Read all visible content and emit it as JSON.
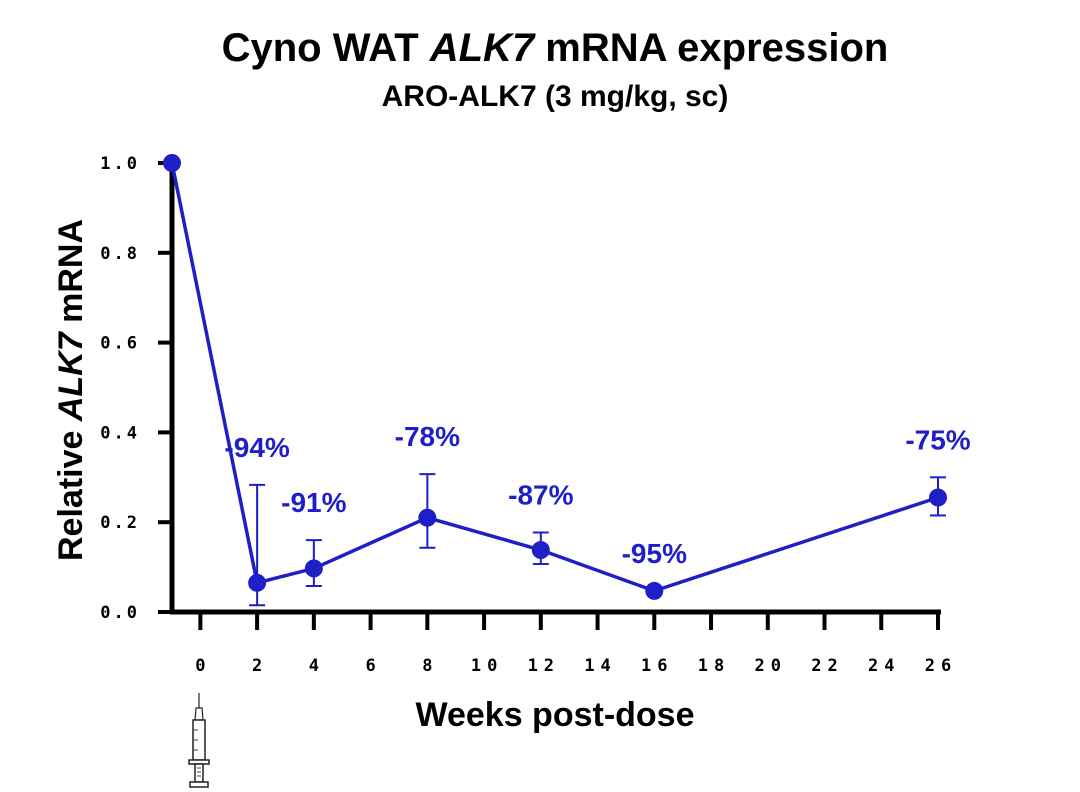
{
  "chart_data": {
    "type": "line",
    "title_pre": "Cyno WAT ",
    "title_italic": "ALK7",
    "title_post": " mRNA expression",
    "subtitle": "ARO-ALK7 (3 mg/kg, sc)",
    "xlabel": "Weeks post-dose",
    "ylabel_pre": "Relative ",
    "ylabel_italic": "ALK7",
    "ylabel_post": " mRNA",
    "ylim": [
      0,
      1.0
    ],
    "xlim": [
      -1,
      26
    ],
    "yticks": [
      "0.0",
      "0.2",
      "0.4",
      "0.6",
      "0.8",
      "1.0"
    ],
    "ytick_values": [
      0,
      0.2,
      0.4,
      0.6,
      0.8,
      1.0
    ],
    "xticks": [
      "0",
      "2",
      "4",
      "6",
      "8",
      "10",
      "12",
      "14",
      "16",
      "18",
      "20",
      "22",
      "24",
      "26"
    ],
    "xtick_values": [
      0,
      2,
      4,
      6,
      8,
      10,
      12,
      14,
      16,
      18,
      20,
      22,
      24,
      26
    ],
    "series": [
      {
        "color": "#1f1fc8",
        "points": [
          {
            "x": -1,
            "y": 1.0,
            "err_low": null,
            "err_high": null,
            "label": ""
          },
          {
            "x": 2,
            "y": 0.065,
            "err_low": 0.015,
            "err_high": 0.283,
            "label": "-94%"
          },
          {
            "x": 4,
            "y": 0.097,
            "err_low": 0.058,
            "err_high": 0.16,
            "label": "-91%"
          },
          {
            "x": 8,
            "y": 0.21,
            "err_low": 0.143,
            "err_high": 0.307,
            "label": "-78%"
          },
          {
            "x": 12,
            "y": 0.138,
            "err_low": 0.107,
            "err_high": 0.177,
            "label": "-87%"
          },
          {
            "x": 16,
            "y": 0.047,
            "err_low": null,
            "err_high": null,
            "label": "-95%"
          },
          {
            "x": 26,
            "y": 0.255,
            "err_low": 0.215,
            "err_high": 0.3,
            "label": "-75%"
          }
        ]
      }
    ],
    "grid": false,
    "marker_icon": "syringe-icon"
  }
}
